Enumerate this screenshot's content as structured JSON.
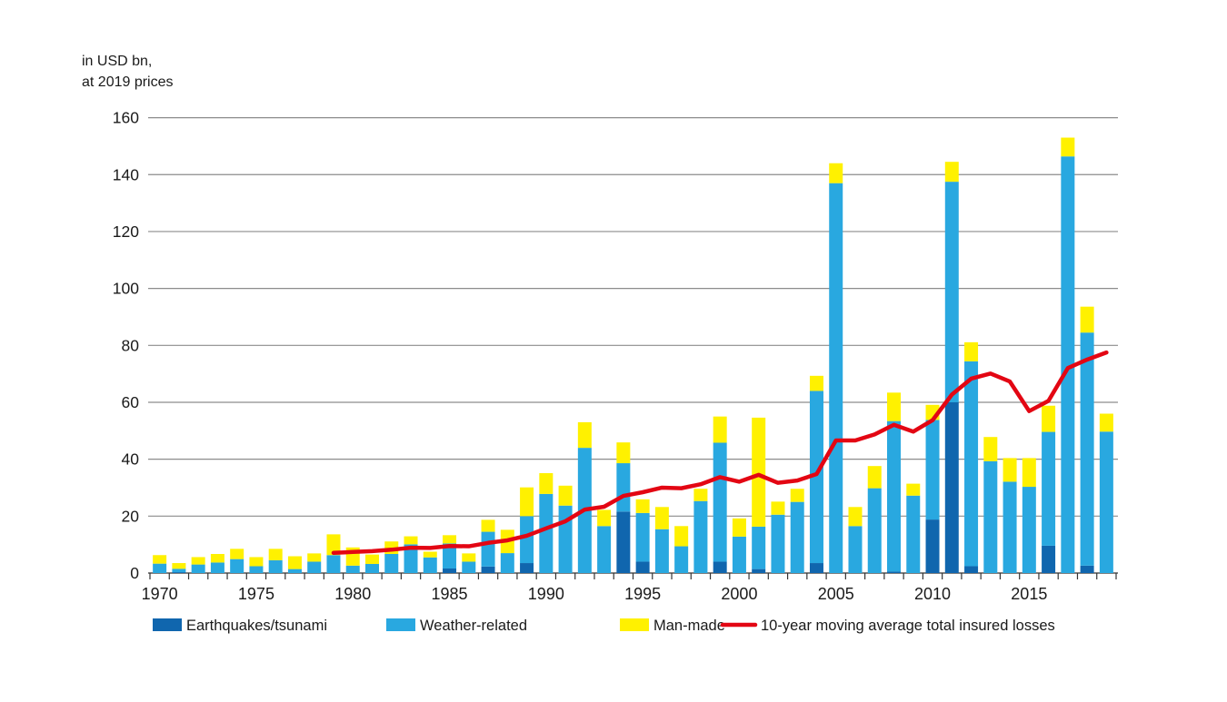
{
  "page": {
    "background": "#ffffff"
  },
  "chart_data": {
    "type": "bar",
    "stacked": true,
    "title_lines": [
      "in USD bn,",
      "at 2019 prices"
    ],
    "grid": "horizontal",
    "legend_position": "bottom",
    "ylim": [
      0,
      160
    ],
    "yticks": [
      0,
      20,
      40,
      60,
      80,
      100,
      120,
      140,
      160
    ],
    "xticks_labeled": [
      1970,
      1975,
      1980,
      1985,
      1990,
      1995,
      2000,
      2005,
      2010,
      2015
    ],
    "years_start": 1970,
    "years_end": 2019,
    "series": [
      {
        "name": "Earthquakes/tsunami",
        "color": "#1066AE",
        "values": [
          0,
          0.3,
          0,
          0,
          0,
          0,
          0,
          0,
          0,
          0,
          0,
          0,
          0,
          0,
          0,
          1.6,
          0,
          2.3,
          0,
          3.5,
          0,
          0,
          0,
          0,
          21.6,
          4,
          0,
          0,
          0,
          4,
          0,
          1.4,
          0,
          0,
          3.5,
          0,
          0,
          0,
          0.5,
          0,
          18.8,
          60,
          2.4,
          0,
          0,
          0,
          9.6,
          0,
          2.6,
          0
        ]
      },
      {
        "name": "Weather-related",
        "color": "#29A8E0",
        "values": [
          3.3,
          1.2,
          3,
          3.7,
          4.9,
          2.4,
          4.5,
          1.4,
          4,
          6.3,
          2.6,
          3.2,
          6.7,
          10.1,
          5.5,
          8.8,
          4,
          12.2,
          7,
          16.5,
          27.8,
          23.7,
          44,
          16.5,
          17,
          17.1,
          15.4,
          9.4,
          25.3,
          41.8,
          12.8,
          14.9,
          20.5,
          25,
          60.5,
          137,
          16.5,
          29.8,
          52.9,
          27.2,
          35,
          77.5,
          72,
          39.3,
          32.1,
          30.3,
          40,
          146.4,
          81.9,
          49.7
        ]
      },
      {
        "name": "Man-made",
        "color": "#FFF100",
        "values": [
          3,
          2,
          2.6,
          3,
          3.6,
          3.2,
          4,
          4.5,
          2.9,
          7.3,
          6.4,
          3.3,
          4.4,
          2.8,
          2,
          2.9,
          2.9,
          4.2,
          8.2,
          10.1,
          7.3,
          7,
          9,
          5.7,
          7.3,
          4.8,
          7.8,
          7.1,
          4.3,
          9.2,
          6.4,
          38.3,
          4.6,
          4.6,
          5.3,
          7,
          6.7,
          7.8,
          10,
          4.2,
          5.3,
          7,
          6.7,
          8.5,
          8.3,
          10.1,
          9.2,
          6.6,
          9.1,
          6.3
        ]
      }
    ],
    "line_series": {
      "name": "10-year moving average total insured losses",
      "color": "#E30613",
      "start_year": 1979,
      "values": [
        7.1,
        7.4,
        7.7,
        8.2,
        8.9,
        8.8,
        9.5,
        9.4,
        10.6,
        11.5,
        13.1,
        15.7,
        18.2,
        22.3,
        23.3,
        27.1,
        28.4,
        30,
        29.8,
        31.2,
        33.7,
        32.1,
        34.5,
        31.7,
        32.5,
        34.8,
        46.6,
        46.6,
        48.7,
        52.1,
        49.7,
        53.7,
        62.7,
        68.3,
        70.1,
        67.3,
        56.9,
        60.5,
        72,
        75,
        77.5
      ]
    },
    "colors": {
      "gridline": "#8C8C8C",
      "axis": "#333333",
      "text": "#1a1a1a"
    }
  }
}
